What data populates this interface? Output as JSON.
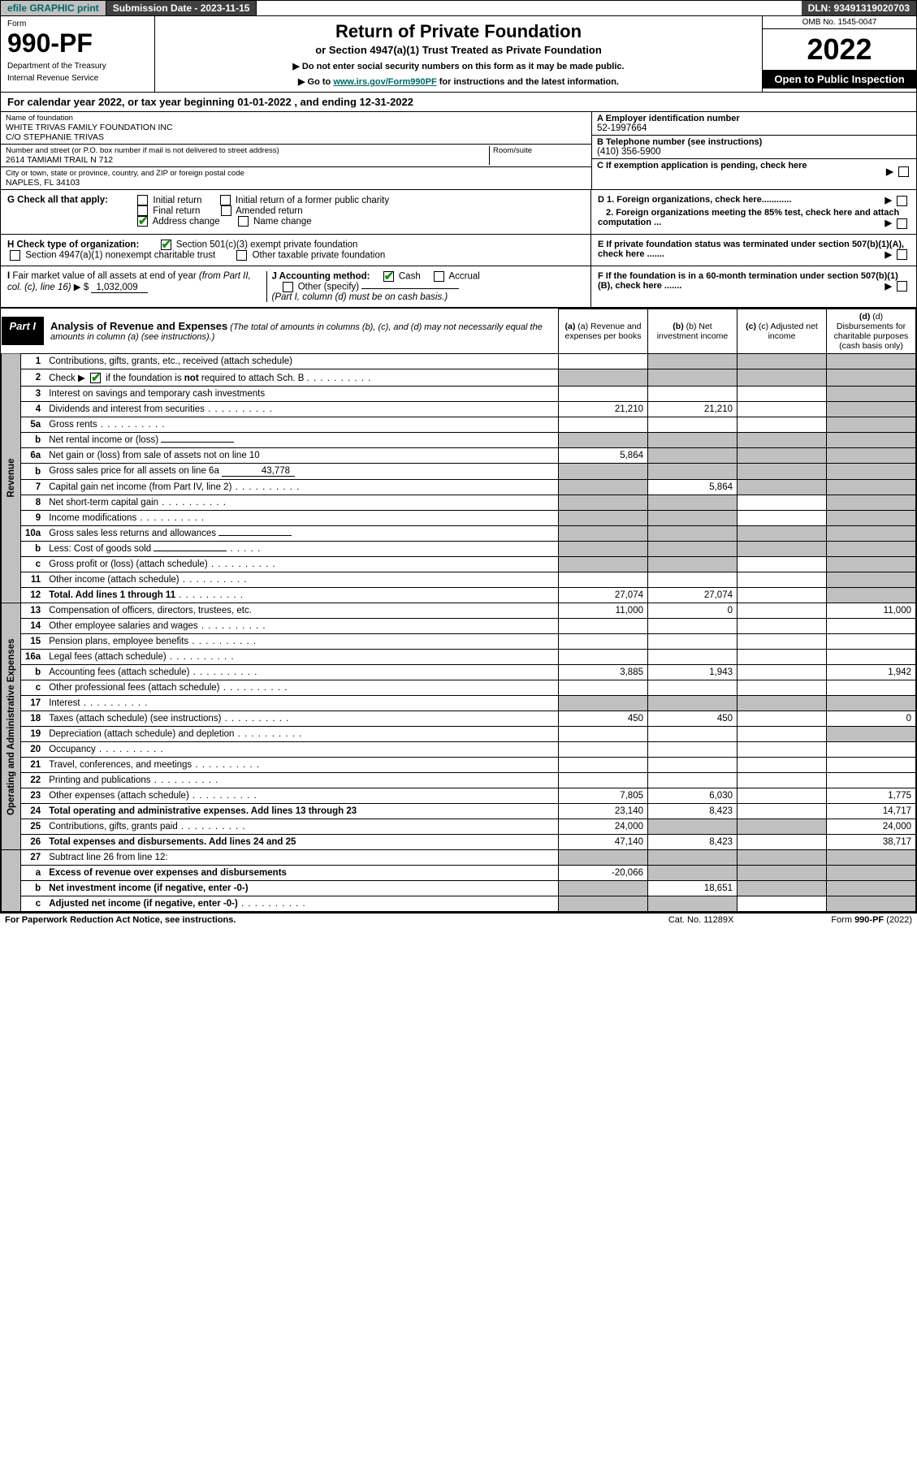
{
  "topbar": {
    "print": "efile GRAPHIC print",
    "submission": "Submission Date - 2023-11-15",
    "dln": "DLN: 93491319020703"
  },
  "header": {
    "form_label": "Form",
    "form_num": "990-PF",
    "dept1": "Department of the Treasury",
    "dept2": "Internal Revenue Service",
    "title": "Return of Private Foundation",
    "subtitle": "or Section 4947(a)(1) Trust Treated as Private Foundation",
    "note1": "▶ Do not enter social security numbers on this form as it may be made public.",
    "note2_pre": "▶ Go to ",
    "note2_link": "www.irs.gov/Form990PF",
    "note2_post": " for instructions and the latest information.",
    "omb": "OMB No. 1545-0047",
    "year": "2022",
    "open_public": "Open to Public Inspection"
  },
  "cal": "For calendar year 2022, or tax year beginning 01-01-2022 , and ending 12-31-2022",
  "info": {
    "name_label": "Name of foundation",
    "name1": "WHITE TRIVAS FAMILY FOUNDATION INC",
    "name2": "C/O STEPHANIE TRIVAS",
    "addr_label": "Number and street (or P.O. box number if mail is not delivered to street address)",
    "addr": "2614 TAMIAMI TRAIL N 712",
    "room_label": "Room/suite",
    "city_label": "City or town, state or province, country, and ZIP or foreign postal code",
    "city": "NAPLES, FL  34103",
    "a_label": "A Employer identification number",
    "a_val": "52-1997664",
    "b_label": "B Telephone number (see instructions)",
    "b_val": "(410) 356-5900",
    "c_label": "C If exemption application is pending, check here",
    "d1": "D 1. Foreign organizations, check here............",
    "d2": "2. Foreign organizations meeting the 85% test, check here and attach computation ...",
    "e": "E  If private foundation status was terminated under section 507(b)(1)(A), check here .......",
    "f": "F  If the foundation is in a 60-month termination under section 507(b)(1)(B), check here .......",
    "g_label": "G Check all that apply:",
    "g_opts": [
      "Initial return",
      "Final return",
      "Address change",
      "Initial return of a former public charity",
      "Amended return",
      "Name change"
    ],
    "h_label": "H Check type of organization:",
    "h_opts": [
      "Section 501(c)(3) exempt private foundation",
      "Section 4947(a)(1) nonexempt charitable trust",
      "Other taxable private foundation"
    ],
    "i_label": "I Fair market value of all assets at end of year (from Part II, col. (c), line 16) ▶ $",
    "i_val": "1,032,009",
    "j_label": "J Accounting method:",
    "j_cash": "Cash",
    "j_accrual": "Accrual",
    "j_other": "Other (specify)",
    "j_note": "(Part I, column (d) must be on cash basis.)"
  },
  "part1": {
    "tag": "Part I",
    "title": "Analysis of Revenue and Expenses",
    "title_note": " (The total of amounts in columns (b), (c), and (d) may not necessarily equal the amounts in column (a) (see instructions).)",
    "cols": [
      "(a) Revenue and expenses per books",
      "(b) Net investment income",
      "(c) Adjusted net income",
      "(d) Disbursements for charitable purposes (cash basis only)"
    ]
  },
  "side": {
    "revenue": "Revenue",
    "expenses": "Operating and Administrative Expenses"
  },
  "rows": [
    {
      "n": "1",
      "d": "Contributions, gifts, grants, etc., received (attach schedule)",
      "a": "",
      "b": "grey",
      "c": "grey",
      "dd": "grey"
    },
    {
      "n": "2",
      "d": "Check ▶ [✔] if the foundation is not required to attach Sch. B",
      "a": "grey",
      "b": "grey",
      "c": "grey",
      "dd": "grey",
      "bold_not": true,
      "dots": true
    },
    {
      "n": "3",
      "d": "Interest on savings and temporary cash investments",
      "a": "",
      "b": "",
      "c": "",
      "dd": "grey"
    },
    {
      "n": "4",
      "d": "Dividends and interest from securities",
      "a": "21,210",
      "b": "21,210",
      "c": "",
      "dd": "grey",
      "dots": true
    },
    {
      "n": "5a",
      "d": "Gross rents",
      "a": "",
      "b": "",
      "c": "",
      "dd": "grey",
      "dots": true
    },
    {
      "n": "b",
      "d": "Net rental income or (loss)",
      "a": "grey",
      "b": "grey",
      "c": "grey",
      "dd": "grey",
      "inline": true
    },
    {
      "n": "6a",
      "d": "Net gain or (loss) from sale of assets not on line 10",
      "a": "5,864",
      "b": "grey",
      "c": "grey",
      "dd": "grey"
    },
    {
      "n": "b",
      "d": "Gross sales price for all assets on line 6a",
      "a": "grey",
      "b": "grey",
      "c": "grey",
      "dd": "grey",
      "inline": true,
      "inline_val": "43,778"
    },
    {
      "n": "7",
      "d": "Capital gain net income (from Part IV, line 2)",
      "a": "grey",
      "b": "5,864",
      "c": "grey",
      "dd": "grey",
      "dots": true
    },
    {
      "n": "8",
      "d": "Net short-term capital gain",
      "a": "grey",
      "b": "grey",
      "c": "",
      "dd": "grey",
      "dots": true
    },
    {
      "n": "9",
      "d": "Income modifications",
      "a": "grey",
      "b": "grey",
      "c": "",
      "dd": "grey",
      "dots": true
    },
    {
      "n": "10a",
      "d": "Gross sales less returns and allowances",
      "a": "grey",
      "b": "grey",
      "c": "grey",
      "dd": "grey",
      "inline": true
    },
    {
      "n": "b",
      "d": "Less: Cost of goods sold",
      "a": "grey",
      "b": "grey",
      "c": "grey",
      "dd": "grey",
      "inline": true,
      "dots": true
    },
    {
      "n": "c",
      "d": "Gross profit or (loss) (attach schedule)",
      "a": "grey",
      "b": "grey",
      "c": "",
      "dd": "grey",
      "dots": true
    },
    {
      "n": "11",
      "d": "Other income (attach schedule)",
      "a": "",
      "b": "",
      "c": "",
      "dd": "grey",
      "dots": true
    },
    {
      "n": "12",
      "d": "Total. Add lines 1 through 11",
      "a": "27,074",
      "b": "27,074",
      "c": "",
      "dd": "grey",
      "bold": true,
      "dots": true
    }
  ],
  "exp_rows": [
    {
      "n": "13",
      "d": "Compensation of officers, directors, trustees, etc.",
      "a": "11,000",
      "b": "0",
      "c": "",
      "dd": "11,000"
    },
    {
      "n": "14",
      "d": "Other employee salaries and wages",
      "a": "",
      "b": "",
      "c": "",
      "dd": "",
      "dots": true
    },
    {
      "n": "15",
      "d": "Pension plans, employee benefits",
      "a": "",
      "b": "",
      "c": "",
      "dd": "",
      "dots": true
    },
    {
      "n": "16a",
      "d": "Legal fees (attach schedule)",
      "a": "",
      "b": "",
      "c": "",
      "dd": "",
      "dots": true
    },
    {
      "n": "b",
      "d": "Accounting fees (attach schedule)",
      "a": "3,885",
      "b": "1,943",
      "c": "",
      "dd": "1,942",
      "dots": true
    },
    {
      "n": "c",
      "d": "Other professional fees (attach schedule)",
      "a": "",
      "b": "",
      "c": "",
      "dd": "",
      "dots": true
    },
    {
      "n": "17",
      "d": "Interest",
      "a": "grey",
      "b": "grey",
      "c": "grey",
      "dd": "grey",
      "dots": true
    },
    {
      "n": "18",
      "d": "Taxes (attach schedule) (see instructions)",
      "a": "450",
      "b": "450",
      "c": "",
      "dd": "0",
      "dots": true
    },
    {
      "n": "19",
      "d": "Depreciation (attach schedule) and depletion",
      "a": "",
      "b": "",
      "c": "",
      "dd": "grey",
      "dots": true
    },
    {
      "n": "20",
      "d": "Occupancy",
      "a": "",
      "b": "",
      "c": "",
      "dd": "",
      "dots": true
    },
    {
      "n": "21",
      "d": "Travel, conferences, and meetings",
      "a": "",
      "b": "",
      "c": "",
      "dd": "",
      "dots": true
    },
    {
      "n": "22",
      "d": "Printing and publications",
      "a": "",
      "b": "",
      "c": "",
      "dd": "",
      "dots": true
    },
    {
      "n": "23",
      "d": "Other expenses (attach schedule)",
      "a": "7,805",
      "b": "6,030",
      "c": "",
      "dd": "1,775",
      "dots": true
    },
    {
      "n": "24",
      "d": "Total operating and administrative expenses. Add lines 13 through 23",
      "a": "23,140",
      "b": "8,423",
      "c": "",
      "dd": "14,717",
      "bold": true,
      "dots": true,
      "twoline": true
    },
    {
      "n": "25",
      "d": "Contributions, gifts, grants paid",
      "a": "24,000",
      "b": "grey",
      "c": "grey",
      "dd": "24,000",
      "dots": true
    },
    {
      "n": "26",
      "d": "Total expenses and disbursements. Add lines 24 and 25",
      "a": "47,140",
      "b": "8,423",
      "c": "",
      "dd": "38,717",
      "bold": true
    }
  ],
  "bottom_rows": [
    {
      "n": "27",
      "d": "Subtract line 26 from line 12:",
      "a": "grey",
      "b": "grey",
      "c": "grey",
      "dd": "grey"
    },
    {
      "n": "a",
      "d": "Excess of revenue over expenses and disbursements",
      "a": "-20,066",
      "b": "grey",
      "c": "grey",
      "dd": "grey",
      "bold": true
    },
    {
      "n": "b",
      "d": "Net investment income (if negative, enter -0-)",
      "a": "grey",
      "b": "18,651",
      "c": "grey",
      "dd": "grey",
      "bold": true
    },
    {
      "n": "c",
      "d": "Adjusted net income (if negative, enter -0-)",
      "a": "grey",
      "b": "grey",
      "c": "",
      "dd": "grey",
      "bold": true,
      "dots": true
    }
  ],
  "footer": {
    "left": "For Paperwork Reduction Act Notice, see instructions.",
    "mid": "Cat. No. 11289X",
    "right": "Form 990-PF (2022)"
  }
}
